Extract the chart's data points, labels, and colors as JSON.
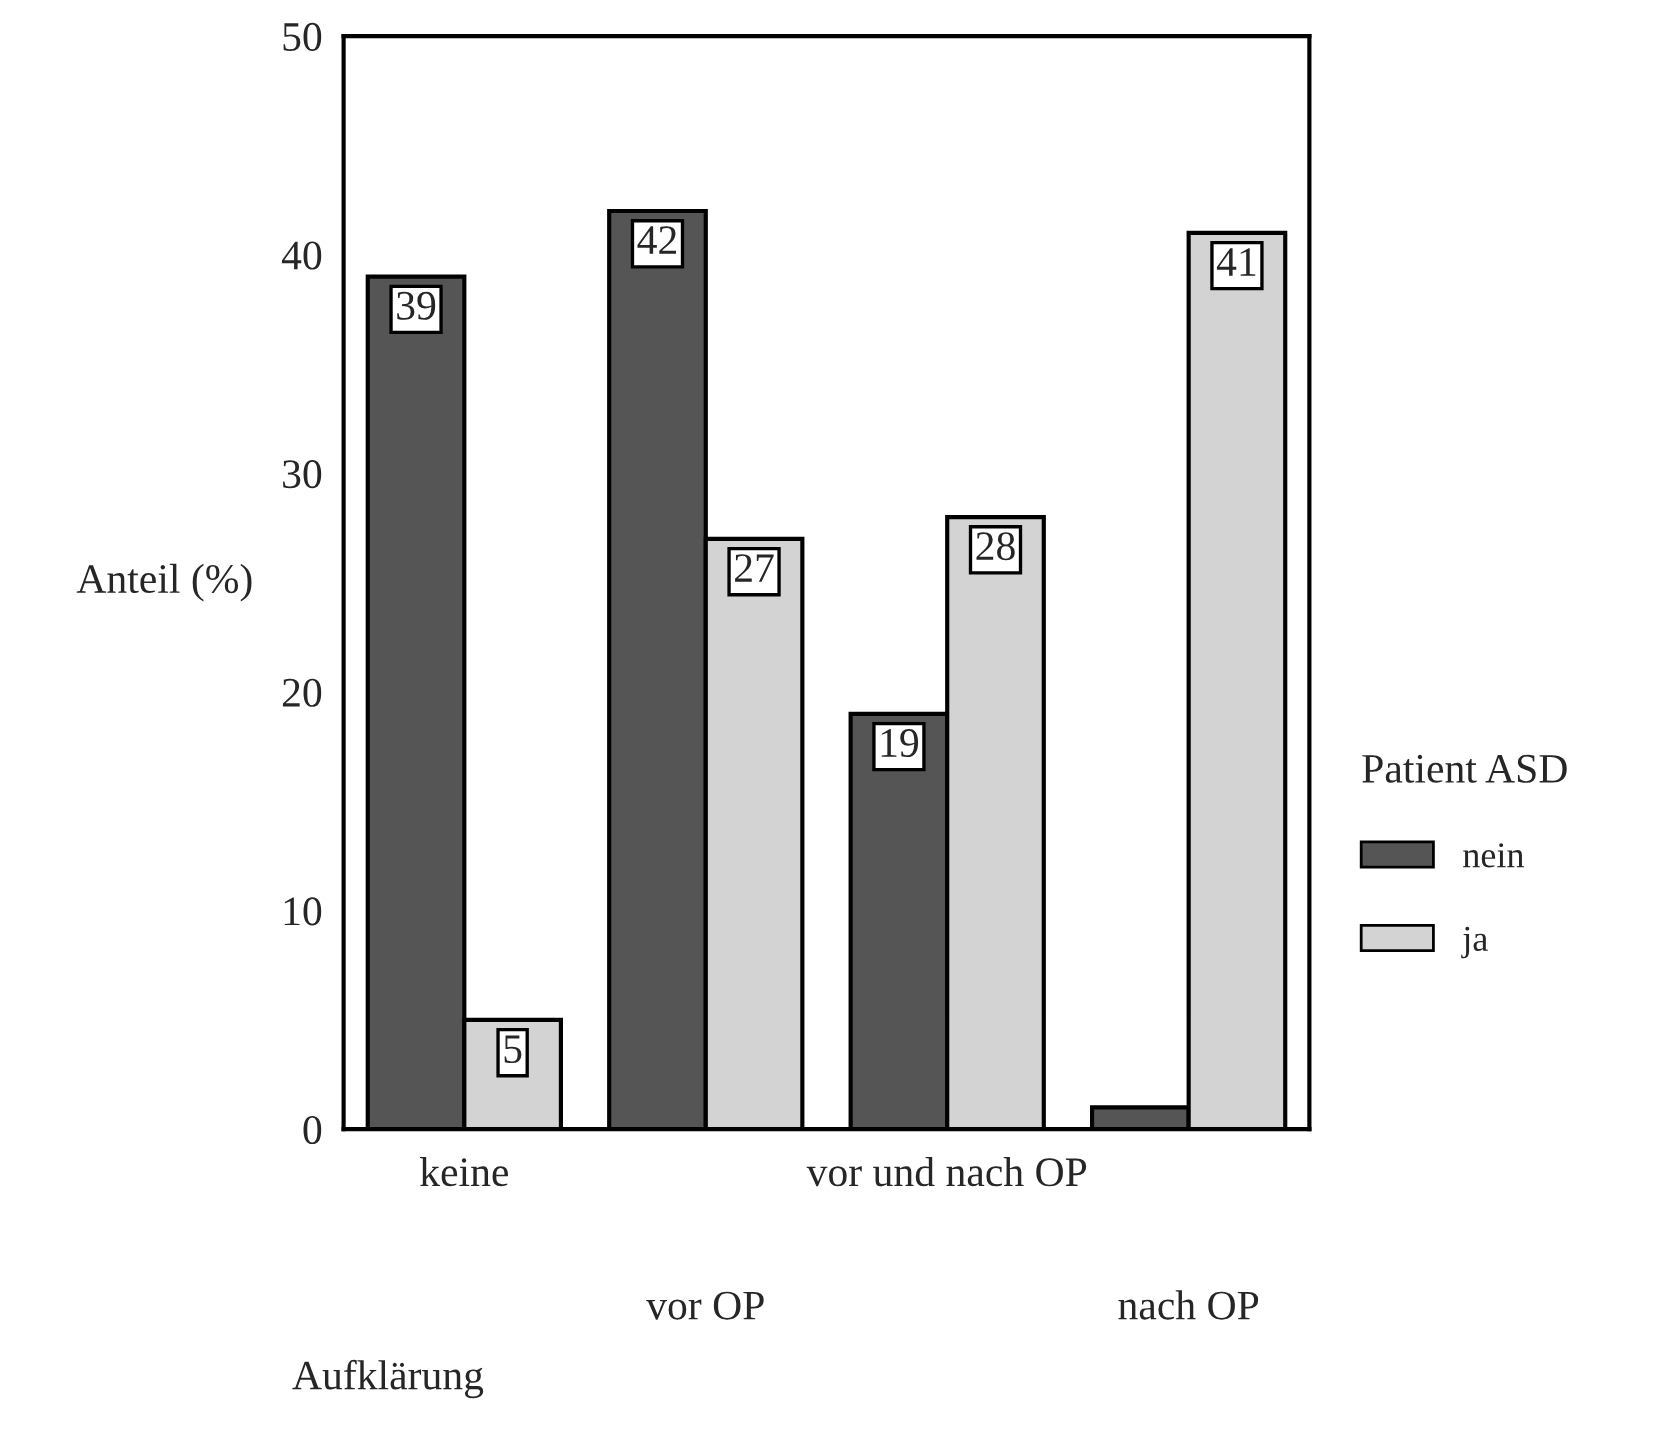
{
  "chart_data": {
    "type": "bar",
    "xlabel": "Aufklärung",
    "ylabel": "Anteil (%)",
    "legend_title": "Patient ASD",
    "categories": [
      "keine",
      "vor OP",
      "vor und nach OP",
      "nach OP"
    ],
    "series": [
      {
        "name": "nein",
        "color": "#555555",
        "values": [
          39,
          42,
          19,
          1
        ],
        "value_labels": [
          "39",
          "42",
          "19",
          null
        ]
      },
      {
        "name": "ja",
        "color": "#d3d3d3",
        "values": [
          5,
          27,
          28,
          41
        ],
        "value_labels": [
          "5",
          "27",
          "28",
          "41"
        ]
      }
    ],
    "ylim": [
      0,
      50
    ],
    "yticks": [
      0,
      10,
      20,
      30,
      40,
      50
    ],
    "grid": false,
    "legend": "right"
  }
}
